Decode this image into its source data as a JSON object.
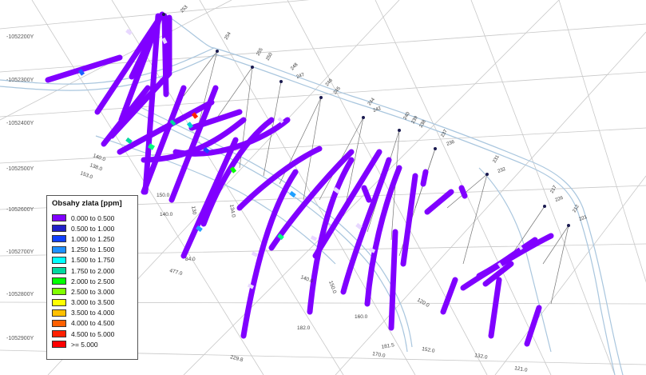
{
  "y_axis_labels": [
    "-1052200Y",
    "-1052300Y",
    "-1052400Y",
    "-1052500Y",
    "-1052600Y",
    "-1052700Y",
    "-1052800Y",
    "-1052900Y"
  ],
  "legend": {
    "title": "Obsahy zlata [ppm]",
    "items": [
      {
        "label": "0.000 to 0.500",
        "color": "#8000ff"
      },
      {
        "label": "0.500 to 1.000",
        "color": "#2020c8"
      },
      {
        "label": "1.000 to 1.250",
        "color": "#1040ff"
      },
      {
        "label": "1.250 to 1.500",
        "color": "#1e90ff"
      },
      {
        "label": "1.500 to 1.750",
        "color": "#00ffff"
      },
      {
        "label": "1.750 to 2.000",
        "color": "#00d8a0"
      },
      {
        "label": "2.000 to 2.500",
        "color": "#00ff00"
      },
      {
        "label": "2.500 to 3.000",
        "color": "#80ff00"
      },
      {
        "label": "3.000 to 3.500",
        "color": "#ffff00"
      },
      {
        "label": "3.500 to 4.000",
        "color": "#ffc000"
      },
      {
        "label": "4.000 to 4.500",
        "color": "#ff6000"
      },
      {
        "label": "4.500 to 5.000",
        "color": "#ff2000"
      },
      {
        "label": ">= 5.000",
        "color": "#ff0000"
      }
    ]
  },
  "drillholes": [
    {
      "id": "253",
      "depth": "153.0"
    },
    {
      "id": "254",
      "depth": "138.0"
    },
    {
      "id": "255",
      "depth": "150.0"
    },
    {
      "id": "250",
      "depth": "140.0"
    },
    {
      "id": "248",
      "depth": "130"
    },
    {
      "id": "247",
      "depth": "140.0"
    },
    {
      "id": "246",
      "depth": "134.0"
    },
    {
      "id": "245",
      "depth": "84.0"
    },
    {
      "id": "244",
      "depth": "477.0"
    },
    {
      "id": "243",
      "depth": "229.8"
    },
    {
      "id": "242",
      "depth": "182.0"
    },
    {
      "id": "241",
      "depth": "140.0"
    },
    {
      "id": "240",
      "depth": "150.0"
    },
    {
      "id": "239",
      "depth": "160.0"
    },
    {
      "id": "238",
      "depth": "181.5"
    },
    {
      "id": "237",
      "depth": "170.0"
    },
    {
      "id": "236",
      "depth": "120.0"
    },
    {
      "id": "233",
      "depth": "152.0"
    },
    {
      "id": "232",
      "depth": "132.0"
    },
    {
      "id": "231",
      "depth": "121.0"
    },
    {
      "id": "226",
      "depth": "120.0"
    },
    {
      "id": "222",
      "depth": "132.0"
    },
    {
      "id": "221",
      "depth": "125.0"
    },
    {
      "id": "217",
      "depth": "120.0"
    },
    {
      "id": "212",
      "depth": "150.0"
    }
  ]
}
